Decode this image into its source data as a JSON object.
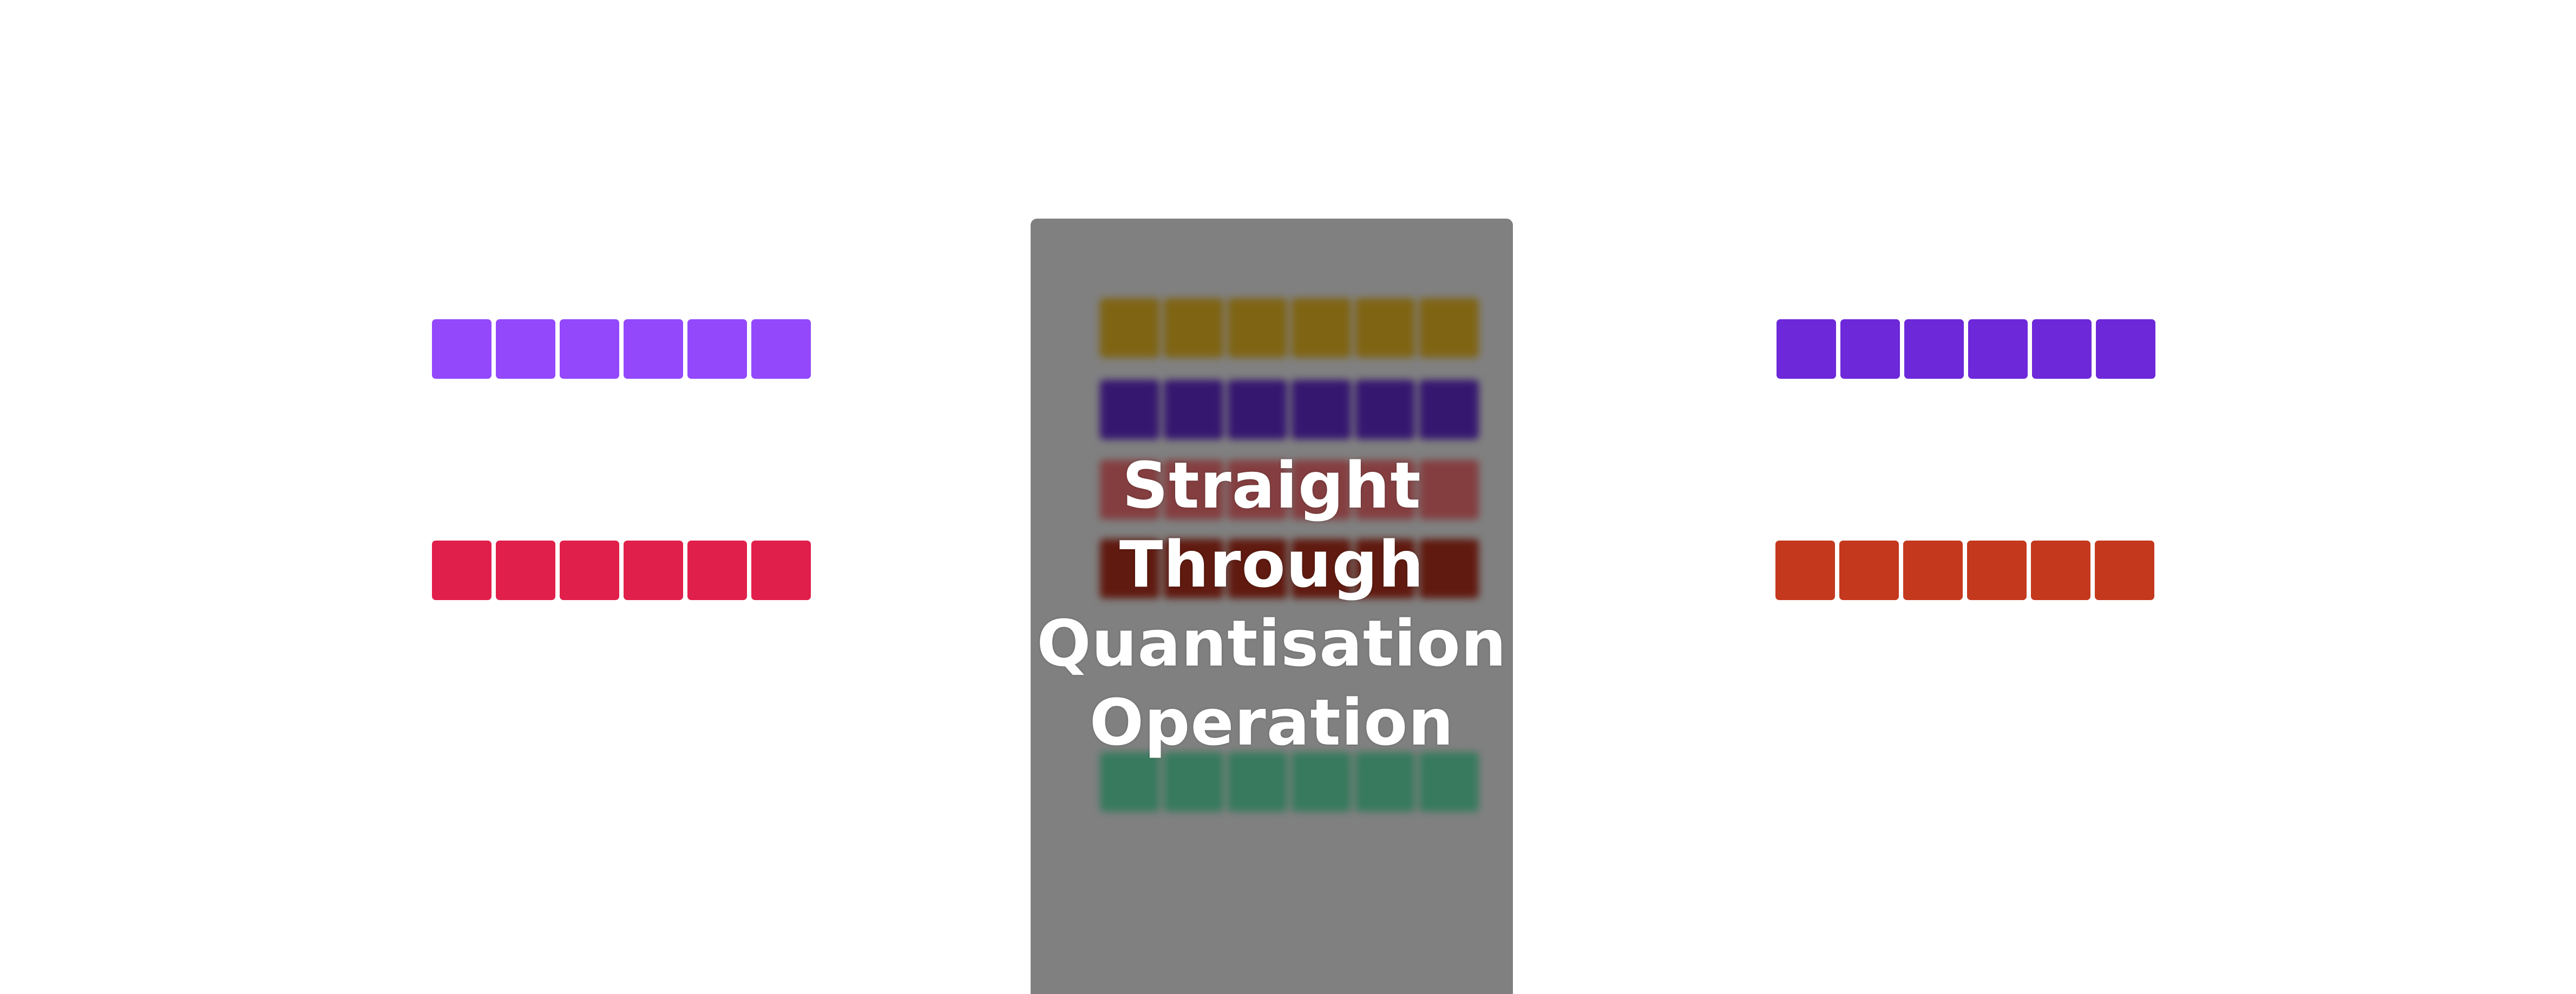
{
  "diagram": {
    "left_inputs": [
      {
        "name": "left-top-row",
        "color": "#9448FC",
        "cells": 6
      },
      {
        "name": "left-bottom-row",
        "color": "#E11F4B",
        "cells": 6
      }
    ],
    "right_outputs": [
      {
        "name": "right-top-row",
        "color": "#6D28D9",
        "cells": 6
      },
      {
        "name": "right-bottom-row",
        "color": "#C4381E",
        "cells": 6
      }
    ],
    "panel": {
      "background": "#808080",
      "blurred_rows": [
        {
          "color": "#7F6414",
          "cells": 6
        },
        {
          "color": "#361770",
          "cells": 6
        },
        {
          "color": "#843E40",
          "cells": 6
        },
        {
          "color": "#601A10",
          "cells": 6
        },
        {
          "color": "#377A5E",
          "cells": 6
        }
      ],
      "label_lines": [
        "Straight",
        "Through",
        "Quantisation",
        "Operation"
      ]
    }
  }
}
